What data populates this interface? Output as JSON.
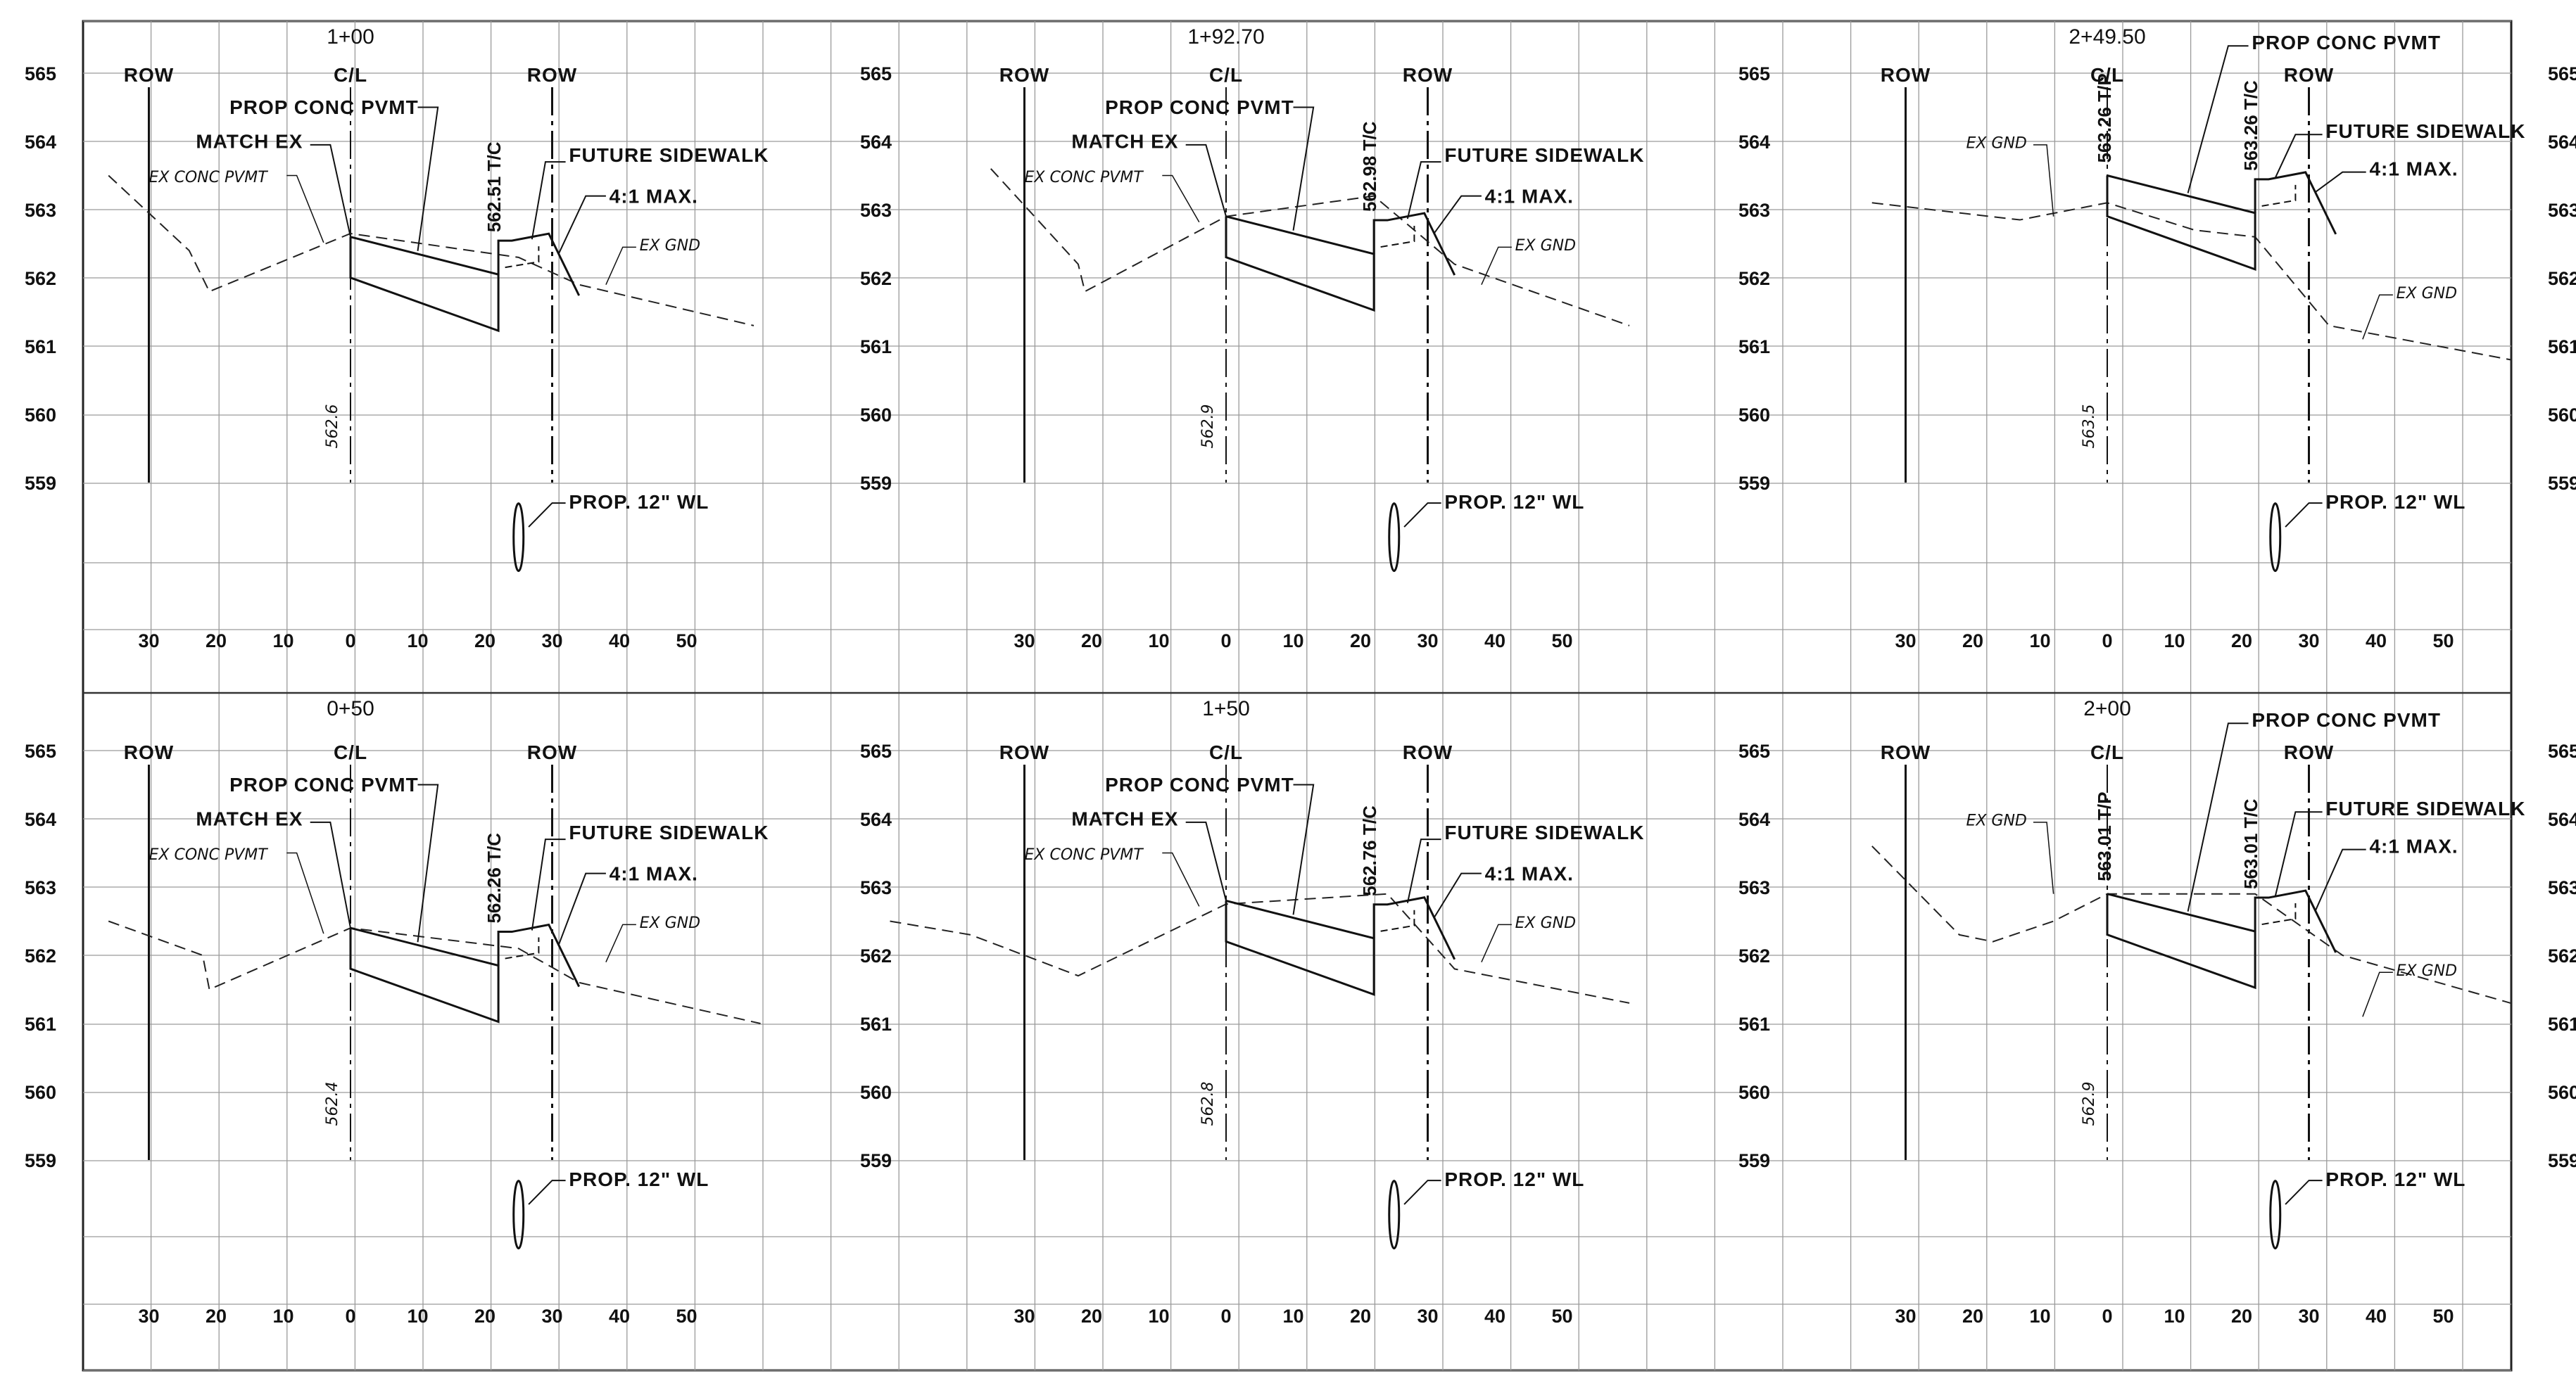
{
  "elevations": [
    "565",
    "564",
    "563",
    "562",
    "561",
    "560",
    "559"
  ],
  "offsets": [
    "30",
    "20",
    "10",
    "0",
    "10",
    "20",
    "30",
    "40",
    "50"
  ],
  "sections": [
    {
      "station": "1+00",
      "grade_elev": "562.6",
      "tc_label": "562.51 T/C",
      "tp_label": "",
      "labels": {
        "row_left": "ROW",
        "cl": "C/L",
        "row_right": "ROW",
        "pvmt": "PROP CONC PVMT",
        "match": "MATCH EX",
        "ex_pvmt": "EX CONC PVMT",
        "sidewalk": "FUTURE SIDEWALK",
        "slope": "4:1 MAX.",
        "ex_gnd": "EX GND",
        "wl": "PROP. 12\" WL"
      },
      "ground": [
        [
          -36,
          563.5
        ],
        [
          -24,
          562.4
        ],
        [
          -21,
          561.8
        ],
        [
          0,
          562.65
        ],
        [
          25,
          562.3
        ],
        [
          34,
          561.9
        ],
        [
          60,
          561.3
        ]
      ]
    },
    {
      "station": "1+92.70",
      "grade_elev": "562.9",
      "tc_label": "562.98 T/C",
      "tp_label": "",
      "labels": {
        "row_left": "ROW",
        "cl": "C/L",
        "row_right": "ROW",
        "pvmt": "PROP CONC PVMT",
        "match": "MATCH EX",
        "ex_pvmt": "EX CONC PVMT",
        "sidewalk": "FUTURE SIDEWALK",
        "slope": "4:1 MAX.",
        "ex_gnd": "EX GND",
        "wl": "PROP. 12\" WL"
      },
      "ground": [
        [
          -35,
          563.6
        ],
        [
          -22,
          562.2
        ],
        [
          -21,
          561.8
        ],
        [
          0,
          562.9
        ],
        [
          22,
          563.2
        ],
        [
          34,
          562.2
        ],
        [
          60,
          561.3
        ]
      ]
    },
    {
      "station": "2+49.50",
      "grade_elev": "563.5",
      "tc_label": "563.26 T/C",
      "tp_label": "563.26 T/P",
      "labels": {
        "row_left": "ROW",
        "cl": "C/L",
        "row_right": "ROW",
        "pvmt": "PROP CONC PVMT",
        "match": "",
        "ex_pvmt": "",
        "sidewalk": "FUTURE SIDEWALK",
        "slope": "4:1 MAX.",
        "ex_gnd": "EX GND",
        "wl": "PROP. 12\" WL"
      },
      "ground": [
        [
          -35,
          563.1
        ],
        [
          -13,
          562.85
        ],
        [
          0,
          563.1
        ],
        [
          13,
          562.7
        ],
        [
          22,
          562.6
        ],
        [
          33,
          561.3
        ],
        [
          60,
          560.8
        ]
      ]
    },
    {
      "station": "0+50",
      "grade_elev": "562.4",
      "tc_label": "562.26 T/C",
      "tp_label": "",
      "labels": {
        "row_left": "ROW",
        "cl": "C/L",
        "row_right": "ROW",
        "pvmt": "PROP CONC PVMT",
        "match": "MATCH EX",
        "ex_pvmt": "EX CONC PVMT",
        "sidewalk": "FUTURE SIDEWALK",
        "slope": "4:1 MAX.",
        "ex_gnd": "EX GND",
        "wl": "PROP. 12\" WL"
      },
      "ground": [
        [
          -36,
          562.5
        ],
        [
          -22,
          562.0
        ],
        [
          -21,
          561.5
        ],
        [
          0,
          562.4
        ],
        [
          25,
          562.1
        ],
        [
          34,
          561.6
        ],
        [
          61,
          561.0
        ]
      ]
    },
    {
      "station": "1+50",
      "grade_elev": "562.8",
      "tc_label": "562.76 T/C",
      "tp_label": "",
      "labels": {
        "row_left": "ROW",
        "cl": "C/L",
        "row_right": "ROW",
        "pvmt": "PROP CONC PVMT",
        "match": "MATCH EX",
        "ex_pvmt": "EX CONC PVMT",
        "sidewalk": "FUTURE SIDEWALK",
        "slope": "4:1 MAX.",
        "ex_gnd": "EX GND",
        "wl": "PROP. 12\" WL"
      },
      "ground": [
        [
          -50,
          562.5
        ],
        [
          -38,
          562.3
        ],
        [
          -22,
          561.7
        ],
        [
          0,
          562.75
        ],
        [
          24,
          562.9
        ],
        [
          34,
          561.8
        ],
        [
          60,
          561.3
        ]
      ]
    },
    {
      "station": "2+00",
      "grade_elev": "562.9",
      "tc_label": "563.01 T/C",
      "tp_label": "563.01 T/P",
      "labels": {
        "row_left": "ROW",
        "cl": "C/L",
        "row_right": "ROW",
        "pvmt": "PROP CONC PVMT",
        "match": "",
        "ex_pvmt": "",
        "sidewalk": "FUTURE SIDEWALK",
        "slope": "4:1 MAX.",
        "ex_gnd": "EX GND",
        "wl": "PROP. 12\" WL"
      },
      "ground": [
        [
          -35,
          563.6
        ],
        [
          -22,
          562.3
        ],
        [
          -17,
          562.2
        ],
        [
          -8,
          562.5
        ],
        [
          0,
          562.9
        ],
        [
          22,
          562.9
        ],
        [
          35,
          562.0
        ],
        [
          60,
          561.3
        ]
      ]
    }
  ]
}
